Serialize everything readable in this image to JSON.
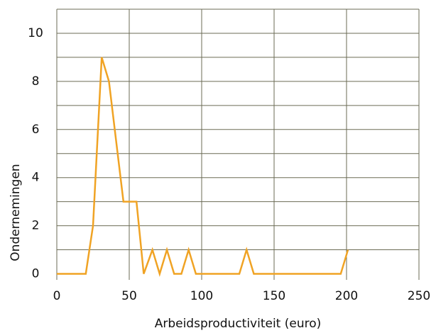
{
  "chart_data": {
    "type": "line",
    "xlabel": "Arbeidsproductiviteit (euro)",
    "ylabel": "Ondernemingen",
    "x": [
      0,
      10,
      20,
      25,
      31,
      36,
      46,
      51,
      55,
      60,
      66,
      71,
      76,
      81,
      86,
      91,
      96,
      126,
      131,
      136,
      196,
      201
    ],
    "series": [
      {
        "name": null,
        "color": "#f0a324",
        "values": [
          0,
          0,
          0,
          2,
          9,
          8,
          3,
          3,
          3,
          0,
          1,
          0,
          1,
          0,
          0,
          1,
          0,
          0,
          1,
          0,
          0,
          1
        ]
      }
    ],
    "xlim": [
      0,
      250
    ],
    "xticks": [
      0,
      50,
      100,
      150,
      200,
      250
    ],
    "ylim": [
      -0.25,
      11
    ],
    "yticks": [
      0,
      2,
      4,
      6,
      8,
      10
    ],
    "yminor_ticks": [
      1,
      3,
      5,
      7,
      9,
      11
    ],
    "grid": true
  }
}
